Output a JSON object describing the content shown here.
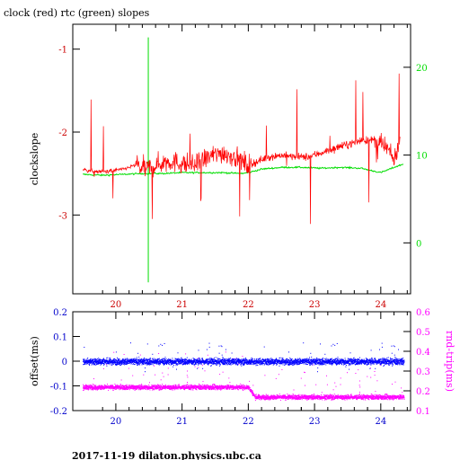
{
  "page": {
    "title": "clock (red) rtc (green) slopes",
    "footer": "2017-11-19  dilaton.physics.ubc.ca"
  },
  "colors": {
    "clock": "#ff0000",
    "rtc": "#00dd00",
    "offset": "#0000ff",
    "rndtrip": "#ff00ff",
    "axis": "#000000"
  },
  "chart_data": [
    {
      "type": "line",
      "title": "clock (red) rtc (green) slopes",
      "ylabel": "clockslope",
      "y2label": "",
      "x_ticks": [
        20,
        21,
        22,
        23,
        24
      ],
      "y_ticks": [
        -1,
        -2,
        -3
      ],
      "y2_ticks": [
        0,
        10,
        20
      ],
      "xlim": [
        19.35,
        24.45
      ],
      "ylim": [
        -3.95,
        -0.7
      ],
      "y2lim": [
        -5.8,
        24.9
      ],
      "series": [
        {
          "color": "#ff0000",
          "axis": "left",
          "x": [
            19.5,
            19.7,
            19.9,
            20.1,
            20.3,
            20.45,
            20.6,
            20.8,
            21.0,
            21.2,
            21.4,
            21.6,
            21.8,
            22.0,
            22.15,
            22.3,
            22.5,
            22.7,
            22.9,
            23.1,
            23.3,
            23.5,
            23.7,
            23.9,
            24.1,
            24.2,
            24.3
          ],
          "y": [
            -2.45,
            -2.48,
            -2.47,
            -2.45,
            -2.4,
            -2.45,
            -2.4,
            -2.35,
            -2.38,
            -2.4,
            -2.3,
            -2.25,
            -2.3,
            -2.4,
            -2.35,
            -2.3,
            -2.28,
            -2.3,
            -2.3,
            -2.25,
            -2.2,
            -2.15,
            -2.1,
            -2.1,
            -2.2,
            -2.35,
            -2.05
          ]
        },
        {
          "color": "#00dd00",
          "axis": "right",
          "x": [
            19.5,
            19.8,
            20.1,
            20.4,
            20.7,
            21.0,
            21.3,
            21.6,
            21.9,
            22.0,
            22.2,
            22.5,
            22.8,
            23.1,
            23.4,
            23.7,
            24.0,
            24.2,
            24.35
          ],
          "y": [
            7.8,
            7.7,
            7.8,
            7.9,
            7.9,
            8.0,
            8.0,
            8.0,
            7.9,
            8.0,
            8.4,
            8.6,
            8.6,
            8.5,
            8.6,
            8.5,
            8.0,
            8.6,
            9.0
          ]
        }
      ]
    },
    {
      "type": "scatter",
      "ylabel": "offset(ms)",
      "y2label": "rnd-trip(ms)",
      "x_ticks": [
        20,
        21,
        22,
        23,
        24
      ],
      "y_ticks": [
        0.2,
        0.1,
        0,
        -0.1,
        -0.2
      ],
      "y2_ticks": [
        0.6,
        0.5,
        0.4,
        0.3,
        0.2,
        0.1
      ],
      "xlim": [
        19.35,
        24.45
      ],
      "ylim": [
        -0.2,
        0.2
      ],
      "y2lim": [
        0.1,
        0.6
      ],
      "series": [
        {
          "color": "#0000ff",
          "axis": "left",
          "x": [
            19.5,
            20.0,
            20.5,
            21.0,
            21.5,
            22.0,
            22.5,
            23.0,
            23.5,
            24.0,
            24.35
          ],
          "y": [
            0.0,
            0.0,
            0.0,
            0.0,
            0.0,
            0.0,
            0.0,
            0.0,
            0.0,
            0.0,
            0.0
          ]
        },
        {
          "color": "#ff00ff",
          "axis": "right",
          "x": [
            19.5,
            20.0,
            20.5,
            21.0,
            21.5,
            22.0,
            22.1,
            22.5,
            23.0,
            23.5,
            24.0,
            24.35
          ],
          "y": [
            0.22,
            0.22,
            0.22,
            0.22,
            0.22,
            0.22,
            0.17,
            0.17,
            0.17,
            0.17,
            0.17,
            0.17
          ]
        }
      ]
    }
  ]
}
